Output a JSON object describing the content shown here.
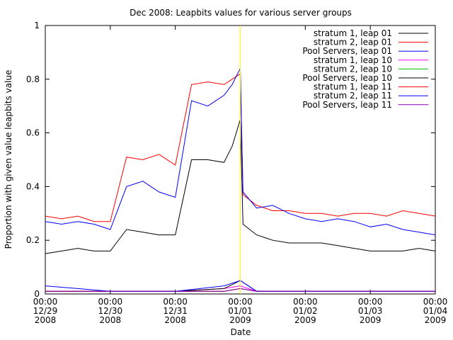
{
  "chart_data": {
    "type": "line",
    "title": "Dec 2008: Leapbits values for various server groups",
    "xlabel": "Date",
    "ylabel": "Proportion with given value leapbits value",
    "xlim": [
      "2008-12-29T00:00",
      "2009-01-04T00:00"
    ],
    "ylim": [
      0,
      1
    ],
    "grid": false,
    "legend_position": "top-right",
    "yticks": [
      "0",
      "0.2",
      "0.4",
      "0.6",
      "0.8",
      "1"
    ],
    "xticks": [
      {
        "time": "00:00",
        "date": "12/29",
        "year": "2008"
      },
      {
        "time": "00:00",
        "date": "12/30",
        "year": "2008"
      },
      {
        "time": "00:00",
        "date": "12/31",
        "year": "2008"
      },
      {
        "time": "00:00",
        "date": "01/01",
        "year": "2009"
      },
      {
        "time": "00:00",
        "date": "01/02",
        "year": "2009"
      },
      {
        "time": "00:00",
        "date": "01/03",
        "year": "2009"
      },
      {
        "time": "00:00",
        "date": "01/04",
        "year": "2009"
      }
    ],
    "marker_line": {
      "x": "2009-01-01T00:00",
      "color": "#ffff00"
    },
    "series": [
      {
        "name": "stratum 1, leap 01",
        "color": "#000000",
        "x": [
          "2008-12-29T00:00",
          "2008-12-29T06:00",
          "2008-12-29T12:00",
          "2008-12-29T18:00",
          "2008-12-30T00:00",
          "2008-12-30T06:00",
          "2008-12-30T12:00",
          "2008-12-30T18:00",
          "2008-12-31T00:00",
          "2008-12-31T06:00",
          "2008-12-31T12:00",
          "2008-12-31T18:00",
          "2008-12-31T21:00",
          "2009-01-01T00:00",
          "2009-01-01T01:00",
          "2009-01-01T06:00",
          "2009-01-01T12:00",
          "2009-01-01T18:00",
          "2009-01-02T00:00",
          "2009-01-02T06:00",
          "2009-01-02T12:00",
          "2009-01-02T18:00",
          "2009-01-03T00:00",
          "2009-01-03T06:00",
          "2009-01-03T12:00",
          "2009-01-03T18:00",
          "2009-01-04T00:00"
        ],
        "y": [
          0.15,
          0.16,
          0.17,
          0.16,
          0.16,
          0.24,
          0.23,
          0.22,
          0.22,
          0.5,
          0.5,
          0.49,
          0.55,
          0.65,
          0.26,
          0.22,
          0.2,
          0.19,
          0.19,
          0.19,
          0.18,
          0.17,
          0.16,
          0.16,
          0.16,
          0.17,
          0.16
        ]
      },
      {
        "name": "stratum 2, leap 01",
        "color": "#ff0000",
        "x": [
          "2008-12-29T00:00",
          "2008-12-29T06:00",
          "2008-12-29T12:00",
          "2008-12-29T18:00",
          "2008-12-30T00:00",
          "2008-12-30T06:00",
          "2008-12-30T12:00",
          "2008-12-30T18:00",
          "2008-12-31T00:00",
          "2008-12-31T06:00",
          "2008-12-31T12:00",
          "2008-12-31T18:00",
          "2008-12-31T21:00",
          "2009-01-01T00:00",
          "2009-01-01T01:00",
          "2009-01-01T06:00",
          "2009-01-01T12:00",
          "2009-01-01T18:00",
          "2009-01-02T00:00",
          "2009-01-02T06:00",
          "2009-01-02T12:00",
          "2009-01-02T18:00",
          "2009-01-03T00:00",
          "2009-01-03T06:00",
          "2009-01-03T12:00",
          "2009-01-03T18:00",
          "2009-01-04T00:00"
        ],
        "y": [
          0.29,
          0.28,
          0.29,
          0.27,
          0.27,
          0.51,
          0.5,
          0.52,
          0.48,
          0.78,
          0.79,
          0.78,
          0.8,
          0.82,
          0.37,
          0.33,
          0.31,
          0.31,
          0.3,
          0.3,
          0.29,
          0.3,
          0.3,
          0.29,
          0.31,
          0.3,
          0.29
        ]
      },
      {
        "name": "Pool Servers, leap 01",
        "color": "#0000ff",
        "x": [
          "2008-12-29T00:00",
          "2008-12-29T06:00",
          "2008-12-29T12:00",
          "2008-12-29T18:00",
          "2008-12-30T00:00",
          "2008-12-30T06:00",
          "2008-12-30T12:00",
          "2008-12-30T18:00",
          "2008-12-31T00:00",
          "2008-12-31T06:00",
          "2008-12-31T12:00",
          "2008-12-31T18:00",
          "2008-12-31T21:00",
          "2009-01-01T00:00",
          "2009-01-01T01:00",
          "2009-01-01T06:00",
          "2009-01-01T12:00",
          "2009-01-01T18:00",
          "2009-01-02T00:00",
          "2009-01-02T06:00",
          "2009-01-02T12:00",
          "2009-01-02T18:00",
          "2009-01-03T00:00",
          "2009-01-03T06:00",
          "2009-01-03T12:00",
          "2009-01-03T18:00",
          "2009-01-04T00:00"
        ],
        "y": [
          0.27,
          0.26,
          0.27,
          0.26,
          0.24,
          0.4,
          0.42,
          0.38,
          0.36,
          0.72,
          0.7,
          0.74,
          0.78,
          0.84,
          0.38,
          0.32,
          0.33,
          0.3,
          0.28,
          0.27,
          0.28,
          0.27,
          0.25,
          0.26,
          0.24,
          0.23,
          0.22
        ]
      },
      {
        "name": "stratum 1, leap 10",
        "color": "#ff00ff",
        "x": [
          "2008-12-29T00:00",
          "2008-12-30T00:00",
          "2008-12-31T00:00",
          "2008-12-31T18:00",
          "2009-01-01T00:00",
          "2009-01-01T06:00",
          "2009-01-02T00:00",
          "2009-01-03T00:00",
          "2009-01-04T00:00"
        ],
        "y": [
          0.01,
          0.01,
          0.01,
          0.02,
          0.03,
          0.01,
          0.01,
          0.01,
          0.01
        ]
      },
      {
        "name": "stratum 2, leap 10",
        "color": "#00c000",
        "x": [
          "2008-12-29T00:00",
          "2008-12-30T00:00",
          "2008-12-31T00:00",
          "2008-12-31T18:00",
          "2009-01-01T00:00",
          "2009-01-01T06:00",
          "2009-01-02T00:00",
          "2009-01-03T00:00",
          "2009-01-04T00:00"
        ],
        "y": [
          0.01,
          0.01,
          0.01,
          0.01,
          0.02,
          0.01,
          0.01,
          0.01,
          0.01
        ]
      },
      {
        "name": "Pool Servers, leap 10",
        "color": "#000000",
        "x": [
          "2008-12-29T00:00",
          "2008-12-30T00:00",
          "2008-12-31T00:00",
          "2008-12-31T18:00",
          "2009-01-01T00:00",
          "2009-01-01T06:00",
          "2009-01-02T00:00",
          "2009-01-03T00:00",
          "2009-01-04T00:00"
        ],
        "y": [
          0.01,
          0.01,
          0.01,
          0.02,
          0.05,
          0.01,
          0.01,
          0.01,
          0.01
        ]
      },
      {
        "name": "stratum 1, leap 11",
        "color": "#ff0000",
        "x": [
          "2008-12-29T00:00",
          "2008-12-30T00:00",
          "2008-12-31T00:00",
          "2008-12-31T18:00",
          "2009-01-01T00:00",
          "2009-01-01T06:00",
          "2009-01-02T00:00",
          "2009-01-03T00:00",
          "2009-01-04T00:00"
        ],
        "y": [
          0.01,
          0.01,
          0.01,
          0.01,
          0.02,
          0.01,
          0.01,
          0.01,
          0.01
        ]
      },
      {
        "name": "stratum 2, leap 11",
        "color": "#0000ff",
        "x": [
          "2008-12-29T00:00",
          "2008-12-30T00:00",
          "2008-12-31T00:00",
          "2008-12-31T18:00",
          "2009-01-01T00:00",
          "2009-01-01T06:00",
          "2009-01-02T00:00",
          "2009-01-03T00:00",
          "2009-01-04T00:00"
        ],
        "y": [
          0.03,
          0.01,
          0.01,
          0.03,
          0.05,
          0.01,
          0.01,
          0.01,
          0.01
        ]
      },
      {
        "name": "Pool Servers, leap 11",
        "color": "#8000c0",
        "x": [
          "2008-12-29T00:00",
          "2008-12-30T00:00",
          "2008-12-31T00:00",
          "2008-12-31T18:00",
          "2009-01-01T00:00",
          "2009-01-01T06:00",
          "2009-01-02T00:00",
          "2009-01-03T00:00",
          "2009-01-04T00:00"
        ],
        "y": [
          0.01,
          0.01,
          0.01,
          0.01,
          0.02,
          0.01,
          0.01,
          0.01,
          0.01
        ]
      }
    ]
  }
}
